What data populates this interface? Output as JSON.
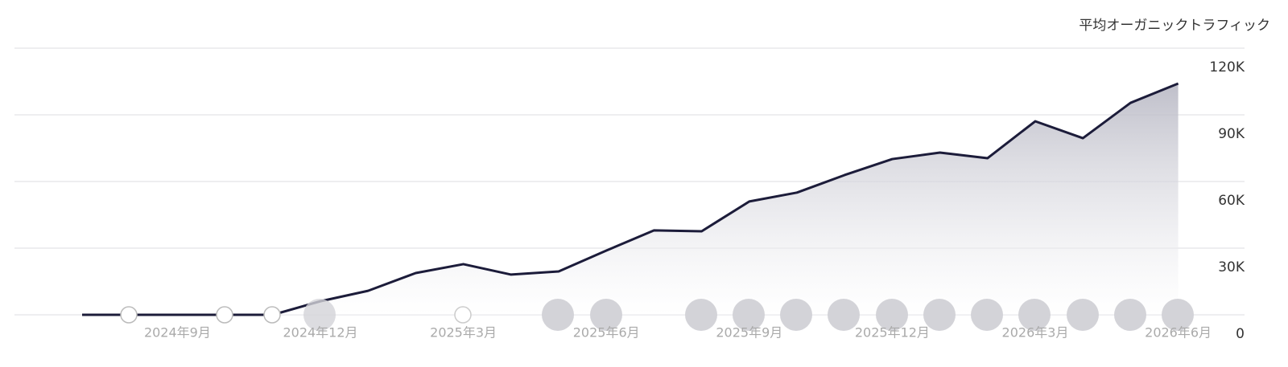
{
  "chart_data": {
    "type": "area",
    "y_axis_title": "平均オーガニックトラフィック",
    "categories": [
      null,
      null,
      "2024年9月",
      null,
      null,
      "2024年12月",
      null,
      null,
      "2025年3月",
      null,
      null,
      "2025年6月",
      null,
      null,
      "2025年9月",
      null,
      null,
      "2025年12月",
      null,
      null,
      "2026年3月",
      null,
      null,
      "2026年6月"
    ],
    "series": [
      {
        "name": null,
        "color": "#1c1c3a",
        "values": [
          0,
          0,
          0,
          0,
          0,
          6100,
          10800,
          18800,
          22800,
          18100,
          19500,
          28900,
          38000,
          37600,
          51000,
          55000,
          62900,
          70100,
          73000,
          70500,
          87100,
          79500,
          95400,
          104100
        ]
      }
    ],
    "ylim": [
      0,
      120000
    ],
    "yticks": [
      0,
      {
        "value": 30000,
        "label": "30K"
      },
      {
        "value": 60000,
        "label": "60K"
      },
      {
        "value": 90000,
        "label": "90K"
      },
      {
        "value": 120000,
        "label": "120K"
      }
    ],
    "grid": true
  }
}
